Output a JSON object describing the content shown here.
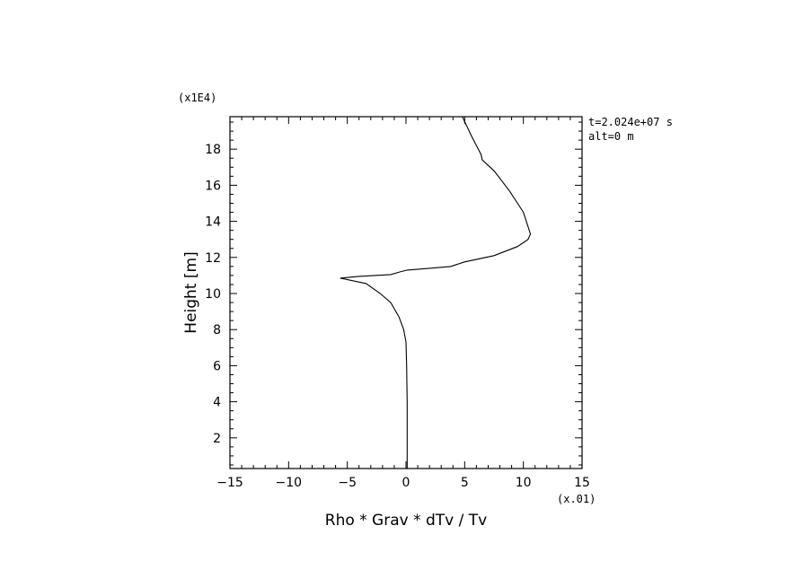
{
  "chart_data": {
    "type": "line",
    "xlabel": "Rho * Grav * dTv / Tv",
    "ylabel": "Height [m]",
    "x_multiplier": "(x.01)",
    "y_multiplier": "(x1E4)",
    "annotations": [
      "t=2.024e+07 s",
      "alt=0 m"
    ],
    "xlim": [
      -15,
      15
    ],
    "ylim": [
      0.3,
      19.8
    ],
    "xticks": [
      -15,
      -10,
      -5,
      0,
      5,
      10,
      15
    ],
    "xtick_labels": [
      "−15",
      "−10",
      "−5",
      "0",
      "5",
      "10",
      "15"
    ],
    "yticks": [
      2,
      4,
      6,
      8,
      10,
      12,
      14,
      16,
      18
    ],
    "ytick_labels": [
      "2",
      "4",
      "6",
      "8",
      "10",
      "12",
      "14",
      "16",
      "18"
    ],
    "grid": false,
    "series": [
      {
        "x": [
          0.1,
          0.1,
          0.1,
          0.05,
          0,
          -0.2,
          -0.6,
          -1.3,
          -2.2,
          -3.4,
          -5.6,
          -4.0,
          -1.3,
          -0.5,
          0.1,
          2.0,
          3.8,
          5.0,
          7.5,
          9.5,
          10.4,
          10.6,
          10.3,
          10.0,
          9.8,
          8.8,
          7.5,
          6.5,
          6.4,
          5.6,
          4.8
        ],
        "y": [
          0.3,
          2,
          4,
          6,
          7.3,
          8.0,
          8.7,
          9.5,
          10.0,
          10.55,
          10.85,
          10.95,
          11.05,
          11.2,
          11.3,
          11.4,
          11.5,
          11.75,
          12.1,
          12.6,
          13.0,
          13.3,
          13.9,
          14.5,
          14.7,
          15.7,
          16.8,
          17.4,
          17.7,
          18.7,
          19.8
        ]
      }
    ]
  }
}
